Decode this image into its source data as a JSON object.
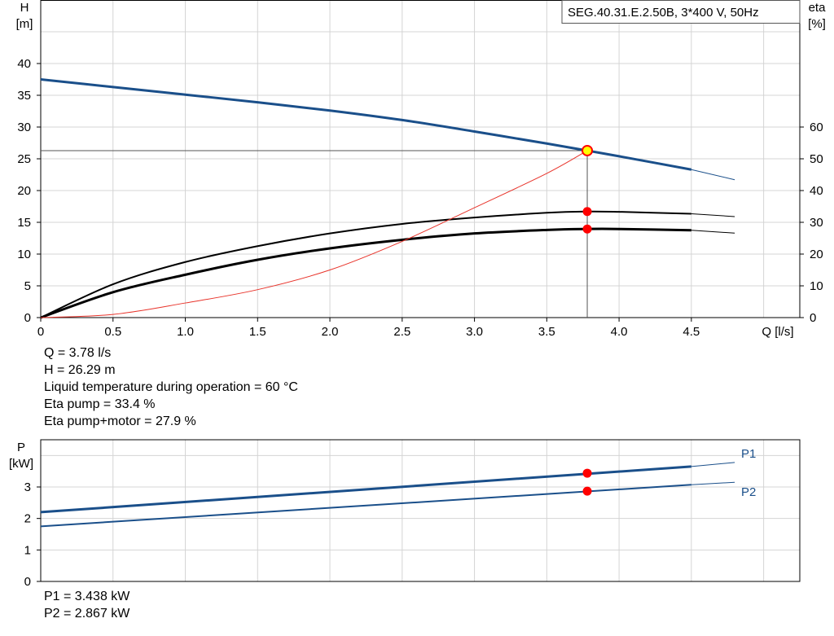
{
  "chart_data": [
    {
      "type": "line",
      "title": "SEG.40.31.E.2.50B, 3*400 V, 50Hz",
      "xlabel": "Q [l/s]",
      "ylabel_left": [
        "H",
        "[m]"
      ],
      "ylabel_right": [
        "eta",
        "[%]"
      ],
      "xlim": [
        0,
        5.25
      ],
      "ylim_left": [
        0,
        50
      ],
      "ylim_right": [
        0,
        60
      ],
      "x_ticks": [
        "0",
        "0.5",
        "1.0",
        "1.5",
        "2.0",
        "2.5",
        "3.0",
        "3.5",
        "4.0",
        "4.5"
      ],
      "y_ticks_left": [
        "0",
        "5",
        "10",
        "15",
        "20",
        "25",
        "30",
        "35",
        "40"
      ],
      "y_ticks_right": [
        "0",
        "10",
        "20",
        "30",
        "40",
        "50",
        "60"
      ],
      "grid": true,
      "colors": {
        "head": "#1a4f8a",
        "eta": "#000000",
        "system": "#e8332a",
        "marker": "#ff0000",
        "duty": "#ffff00"
      },
      "series": [
        {
          "axis": "left",
          "role": "head",
          "x": [
            0,
            0.5,
            1.0,
            1.5,
            2.0,
            2.5,
            3.0,
            3.5,
            3.78,
            4.0,
            4.5
          ],
          "y": [
            37.5,
            36.3,
            35.1,
            33.9,
            32.6,
            31.1,
            29.3,
            27.4,
            26.29,
            25.4,
            23.3
          ],
          "ext_x": [
            4.5,
            4.8
          ],
          "ext_y": [
            23.3,
            21.7
          ]
        },
        {
          "axis": "right",
          "role": "eta_pump",
          "x": [
            0,
            0.5,
            1.0,
            1.5,
            2.0,
            2.5,
            3.0,
            3.5,
            3.78,
            4.0,
            4.5
          ],
          "y": [
            0,
            10.5,
            17.5,
            22.5,
            26.5,
            29.5,
            31.5,
            33,
            33.4,
            33.3,
            32.7
          ],
          "ext_x": [
            4.5,
            4.8
          ],
          "ext_y": [
            32.7,
            31.8
          ]
        },
        {
          "axis": "right",
          "role": "eta_pump_motor",
          "x": [
            0,
            0.5,
            1.0,
            1.5,
            2.0,
            2.5,
            3.0,
            3.5,
            3.78,
            4.0,
            4.5
          ],
          "y": [
            0,
            8,
            13.5,
            18.2,
            21.8,
            24.5,
            26.5,
            27.6,
            27.9,
            27.9,
            27.5
          ],
          "ext_x": [
            4.5,
            4.8
          ],
          "ext_y": [
            27.5,
            26.6
          ]
        },
        {
          "axis": "left",
          "role": "system",
          "x": [
            0,
            0.5,
            1.0,
            1.5,
            2.0,
            2.5,
            3.0,
            3.5,
            3.78
          ],
          "y": [
            0,
            0.5,
            2.3,
            4.4,
            7.5,
            12.0,
            17.3,
            22.7,
            26.29
          ]
        }
      ],
      "duty_point": {
        "x": 3.78,
        "H": 26.29,
        "eta_pump": 33.4,
        "eta_pump_motor": 27.9
      }
    },
    {
      "type": "line",
      "xlabel": "",
      "ylabel": [
        "P",
        "[kW]"
      ],
      "xlim": [
        0,
        5.25
      ],
      "ylim": [
        0,
        4.5
      ],
      "y_ticks": [
        "0",
        "1",
        "2",
        "3"
      ],
      "grid": true,
      "series": [
        {
          "name": "P1",
          "x": [
            0,
            4.5
          ],
          "y": [
            2.2,
            3.65
          ],
          "ext_x": [
            4.5,
            4.8
          ],
          "ext_y": [
            3.65,
            3.78
          ]
        },
        {
          "name": "P2",
          "x": [
            0,
            4.5
          ],
          "y": [
            1.75,
            3.07
          ],
          "ext_x": [
            4.5,
            4.8
          ],
          "ext_y": [
            3.07,
            3.15
          ]
        }
      ],
      "duty_point": {
        "x": 3.78,
        "P1": 3.438,
        "P2": 2.867
      }
    }
  ],
  "info_top": [
    "Q = 3.78 l/s",
    "H = 26.29 m",
    "Liquid temperature during operation = 60 °C",
    "Eta pump = 33.4 %",
    "Eta pump+motor = 27.9 %"
  ],
  "info_bottom": [
    "P1 = 3.438 kW",
    "P2 = 2.867 kW"
  ]
}
